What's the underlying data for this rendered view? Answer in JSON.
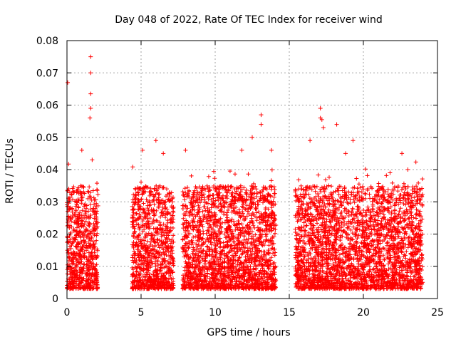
{
  "chart_data": {
    "type": "scatter",
    "title": "Day 048 of 2022, Rate Of TEC Index for receiver wind",
    "xlabel": "GPS time / hours",
    "ylabel": "ROTI / TECUs",
    "xlim": [
      0,
      25
    ],
    "ylim": [
      0,
      0.08
    ],
    "xticks": [
      0,
      5,
      10,
      15,
      20,
      25
    ],
    "yticks": [
      0,
      0.01,
      0.02,
      0.03,
      0.04,
      0.05,
      0.06,
      0.07,
      0.08
    ],
    "xtick_labels": [
      "0",
      "5",
      "10",
      "15",
      "20",
      "25"
    ],
    "ytick_labels": [
      "0",
      "0.01",
      "0.02",
      "0.03",
      "0.04",
      "0.05",
      "0.06",
      "0.07",
      "0.08"
    ],
    "grid": true,
    "marker": "+",
    "color": "#ff0000",
    "series": [
      {
        "segments": [
          {
            "x_start": 0.0,
            "x_end": 2.1
          },
          {
            "x_start": 4.4,
            "x_end": 7.2
          },
          {
            "x_start": 7.8,
            "x_end": 14.1
          },
          {
            "x_start": 15.4,
            "x_end": 24.0
          }
        ],
        "typical_range": [
          0.003,
          0.035
        ],
        "peaks": [
          {
            "x": 0.05,
            "y": 0.067
          },
          {
            "x": 1.6,
            "y": 0.075
          },
          {
            "x": 1.6,
            "y": 0.07
          },
          {
            "x": 1.6,
            "y": 0.0635
          },
          {
            "x": 1.6,
            "y": 0.059
          },
          {
            "x": 1.55,
            "y": 0.056
          },
          {
            "x": 1.0,
            "y": 0.046
          },
          {
            "x": 1.7,
            "y": 0.043
          },
          {
            "x": 5.1,
            "y": 0.046
          },
          {
            "x": 6.0,
            "y": 0.049
          },
          {
            "x": 6.5,
            "y": 0.045
          },
          {
            "x": 8.0,
            "y": 0.046
          },
          {
            "x": 11.8,
            "y": 0.046
          },
          {
            "x": 12.5,
            "y": 0.05
          },
          {
            "x": 13.1,
            "y": 0.057
          },
          {
            "x": 13.1,
            "y": 0.054
          },
          {
            "x": 13.8,
            "y": 0.046
          },
          {
            "x": 16.4,
            "y": 0.049
          },
          {
            "x": 17.1,
            "y": 0.059
          },
          {
            "x": 17.1,
            "y": 0.056
          },
          {
            "x": 17.3,
            "y": 0.053
          },
          {
            "x": 17.2,
            "y": 0.0555
          },
          {
            "x": 18.2,
            "y": 0.054
          },
          {
            "x": 18.8,
            "y": 0.045
          },
          {
            "x": 19.3,
            "y": 0.049
          },
          {
            "x": 22.6,
            "y": 0.045
          },
          {
            "x": 21.8,
            "y": 0.039
          },
          {
            "x": 23.0,
            "y": 0.04
          }
        ]
      }
    ]
  }
}
